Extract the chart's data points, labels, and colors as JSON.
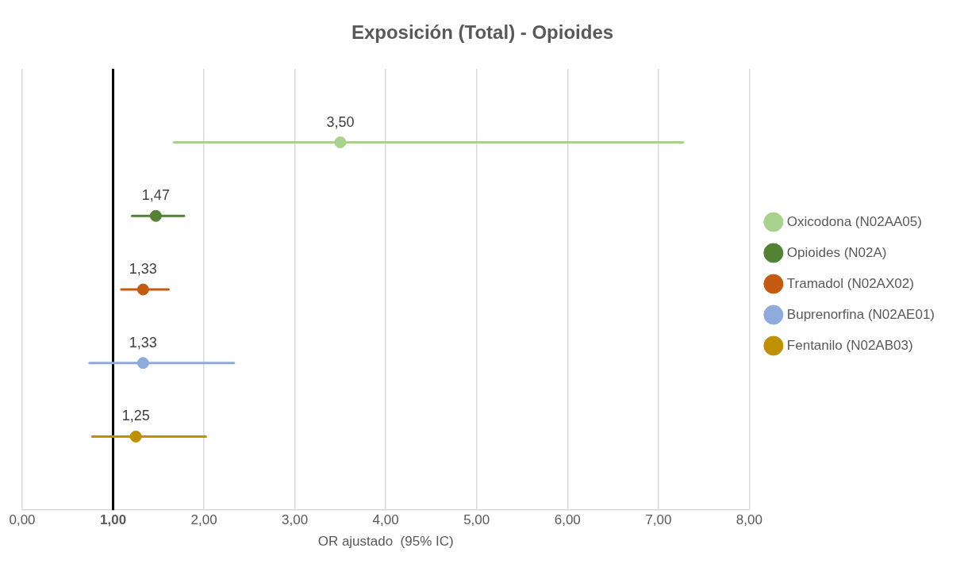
{
  "chart_data": {
    "type": "scatter",
    "orientation": "horizontal",
    "title": "Exposición (Total) - Opioides",
    "xlabel": "OR ajustado  (95% IC)",
    "categories": [
      null,
      null,
      null,
      null,
      null
    ],
    "series": [
      {
        "name": "Oxicodona (N02AA05)",
        "color": "#a9d18e",
        "values": [
          3.5,
          null,
          null,
          null,
          null
        ],
        "errors": [
          [
            1.67,
            7.27
          ],
          null,
          null,
          null,
          null
        ],
        "value_labels": [
          "3,50",
          null,
          null,
          null,
          null
        ]
      },
      {
        "name": "Opioides (N02A)",
        "color": "#548235",
        "values": [
          null,
          1.47,
          null,
          null,
          null
        ],
        "errors": [
          null,
          [
            1.21,
            1.78
          ],
          null,
          null,
          null
        ],
        "value_labels": [
          null,
          "1,47",
          null,
          null,
          null
        ]
      },
      {
        "name": "Tramadol (N02AX02)",
        "color": "#c55a11",
        "values": [
          null,
          null,
          1.33,
          null,
          null
        ],
        "errors": [
          null,
          null,
          [
            1.09,
            1.61
          ],
          null,
          null
        ],
        "value_labels": [
          null,
          null,
          "1,33",
          null,
          null
        ]
      },
      {
        "name": "Buprenorfina (N02AE01)",
        "color": "#8faadc",
        "values": [
          null,
          null,
          null,
          1.33,
          null
        ],
        "errors": [
          null,
          null,
          null,
          [
            0.74,
            2.33
          ],
          null
        ],
        "value_labels": [
          null,
          null,
          null,
          "1,33",
          null
        ]
      },
      {
        "name": "Fentanilo (N02AB03)",
        "color": "#bf9000",
        "values": [
          null,
          null,
          null,
          null,
          1.25
        ],
        "errors": [
          null,
          null,
          null,
          null,
          [
            0.77,
            2.02
          ]
        ],
        "value_labels": [
          null,
          null,
          null,
          null,
          "1,25"
        ]
      }
    ],
    "xlim": [
      0,
      8
    ],
    "xticks": [
      {
        "value": 0,
        "label": "0,00"
      },
      {
        "value": 1,
        "label": "1,00"
      },
      {
        "value": 2,
        "label": "2,00"
      },
      {
        "value": 3,
        "label": "3,00"
      },
      {
        "value": 4,
        "label": "4,00"
      },
      {
        "value": 5,
        "label": "5,00"
      },
      {
        "value": 6,
        "label": "6,00"
      },
      {
        "value": 7,
        "label": "7,00"
      },
      {
        "value": 8,
        "label": "8,00"
      }
    ],
    "ref_lines": [
      {
        "axis": "x",
        "value": 1,
        "color": "#000000"
      }
    ],
    "grid": "x",
    "legend": "right",
    "marker": "circle"
  }
}
